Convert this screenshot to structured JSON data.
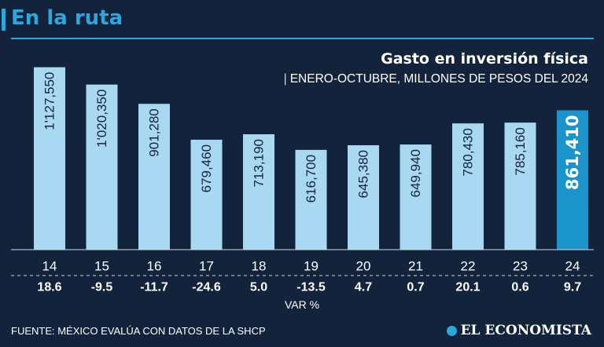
{
  "header": {
    "title": "En la ruta"
  },
  "chart_data": {
    "type": "bar",
    "title": "Gasto en inversión física",
    "subtitle": "ENERO-OCTUBRE, MILLONES DE PESOS DEL 2024",
    "categories": [
      "14",
      "15",
      "16",
      "17",
      "18",
      "19",
      "20",
      "21",
      "22",
      "23",
      "24"
    ],
    "values": [
      1127550,
      1020350,
      901280,
      679460,
      713190,
      616700,
      645380,
      649940,
      780430,
      785160,
      861410
    ],
    "value_labels": [
      "1'127,550",
      "1'020,350",
      "901,280",
      "679,460",
      "713,190",
      "616,700",
      "645,380",
      "649,940",
      "780,430",
      "785,160",
      "861,410"
    ],
    "var_pct": [
      "18.6",
      "-9.5",
      "-11.7",
      "-24.6",
      "5.0",
      "-13.5",
      "4.7",
      "0.7",
      "20.1",
      "0.6",
      "9.7"
    ],
    "var_label": "VAR %",
    "highlight_index": 10,
    "ylim": [
      0,
      1150000
    ],
    "grid": false,
    "legend": "none",
    "colors": {
      "bar": "#a8d8f2",
      "highlight": "#1b95c9",
      "label": "#13233b",
      "highlight_label": "#ffffff",
      "accent": "#2aa8dc",
      "background": "#13233b"
    }
  },
  "footer": {
    "source": "FUENTE: MÉXICO EVALÚA CON DATOS DE LA SHCP",
    "logo": "EL ECONOMISTA"
  }
}
